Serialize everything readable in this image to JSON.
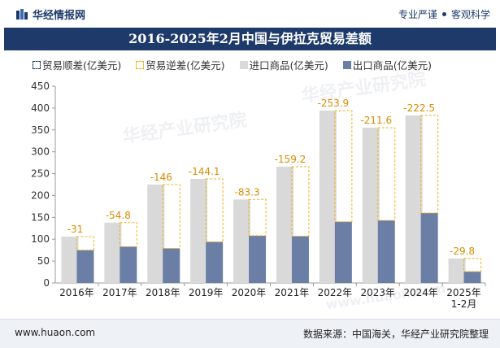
{
  "header": {
    "brand": "华经情报网",
    "tag1": "专业严谨",
    "tag2": "客观科学"
  },
  "footer": {
    "website": "www.huaon.com",
    "source": "数据来源：中国海关，华经产业研究院整理"
  },
  "watermark": {
    "text1": "华经产业研究院",
    "text2": "www.huaon.com"
  },
  "colors": {
    "brand": "#1d3a6b",
    "import": "#d9d9d9",
    "export": "#6a7ea6",
    "deficit": "#f2b019"
  },
  "chart_data": {
    "type": "bar",
    "title": "2016-2025年2月中国与伊拉克贸易差额",
    "categories": [
      "2016年",
      "2017年",
      "2018年",
      "2019年",
      "2020年",
      "2021年",
      "2022年",
      "2023年",
      "2024年",
      "2025年\n1-2月"
    ],
    "series": [
      {
        "name": "贸易顺差(亿美元)",
        "values": [
          null,
          null,
          null,
          null,
          null,
          null,
          null,
          null,
          null,
          null
        ]
      },
      {
        "name": "贸易逆差(亿美元)",
        "values": [
          -31,
          -54.8,
          -146,
          -144.1,
          -83.3,
          -159.2,
          -253.9,
          -211.6,
          -222.5,
          -29.8
        ]
      },
      {
        "name": "进口商品(亿美元)",
        "values": [
          106,
          138,
          225,
          238,
          191,
          266,
          394,
          355,
          383,
          56
        ]
      },
      {
        "name": "出口商品(亿美元)",
        "values": [
          75,
          83,
          79,
          94,
          108,
          107,
          140,
          143,
          160,
          26
        ]
      }
    ],
    "ylim": [
      0,
      450
    ],
    "yticks": [
      0,
      50,
      100,
      150,
      200,
      250,
      300,
      350,
      400,
      450
    ],
    "grid": false,
    "legend": "top"
  }
}
